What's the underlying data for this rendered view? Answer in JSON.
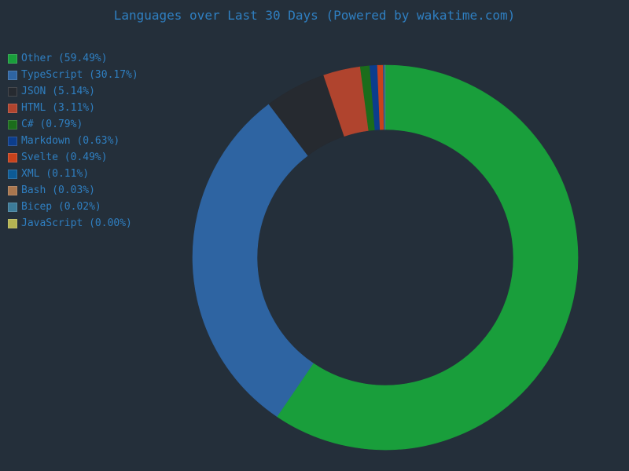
{
  "chart_data": {
    "type": "pie",
    "title": "Languages over Last 30 Days (Powered by wakatime.com)",
    "donut": true,
    "legend_position": "top-left",
    "series": [
      {
        "name": "Other",
        "value": 59.49,
        "label": "Other (59.49%)",
        "color": "#199e3b"
      },
      {
        "name": "TypeScript",
        "value": 30.17,
        "label": "TypeScript (30.17%)",
        "color": "#2e64a2"
      },
      {
        "name": "JSON",
        "value": 5.14,
        "label": "JSON (5.14%)",
        "color": "#262a30"
      },
      {
        "name": "HTML",
        "value": 3.11,
        "label": "HTML (3.11%)",
        "color": "#b0442e"
      },
      {
        "name": "C#",
        "value": 0.79,
        "label": "C# (0.79%)",
        "color": "#1b6d1b"
      },
      {
        "name": "Markdown",
        "value": 0.63,
        "label": "Markdown (0.63%)",
        "color": "#0c3d8c"
      },
      {
        "name": "Svelte",
        "value": 0.49,
        "label": "Svelte (0.49%)",
        "color": "#c8421c"
      },
      {
        "name": "XML",
        "value": 0.11,
        "label": "XML (0.11%)",
        "color": "#0d5b96"
      },
      {
        "name": "Bash",
        "value": 0.03,
        "label": "Bash (0.03%)",
        "color": "#a9764e"
      },
      {
        "name": "Bicep",
        "value": 0.02,
        "label": "Bicep (0.02%)",
        "color": "#3c7b99"
      },
      {
        "name": "JavaScript",
        "value": 0.0,
        "label": "JavaScript (0.00%)",
        "color": "#b5b452"
      }
    ]
  }
}
